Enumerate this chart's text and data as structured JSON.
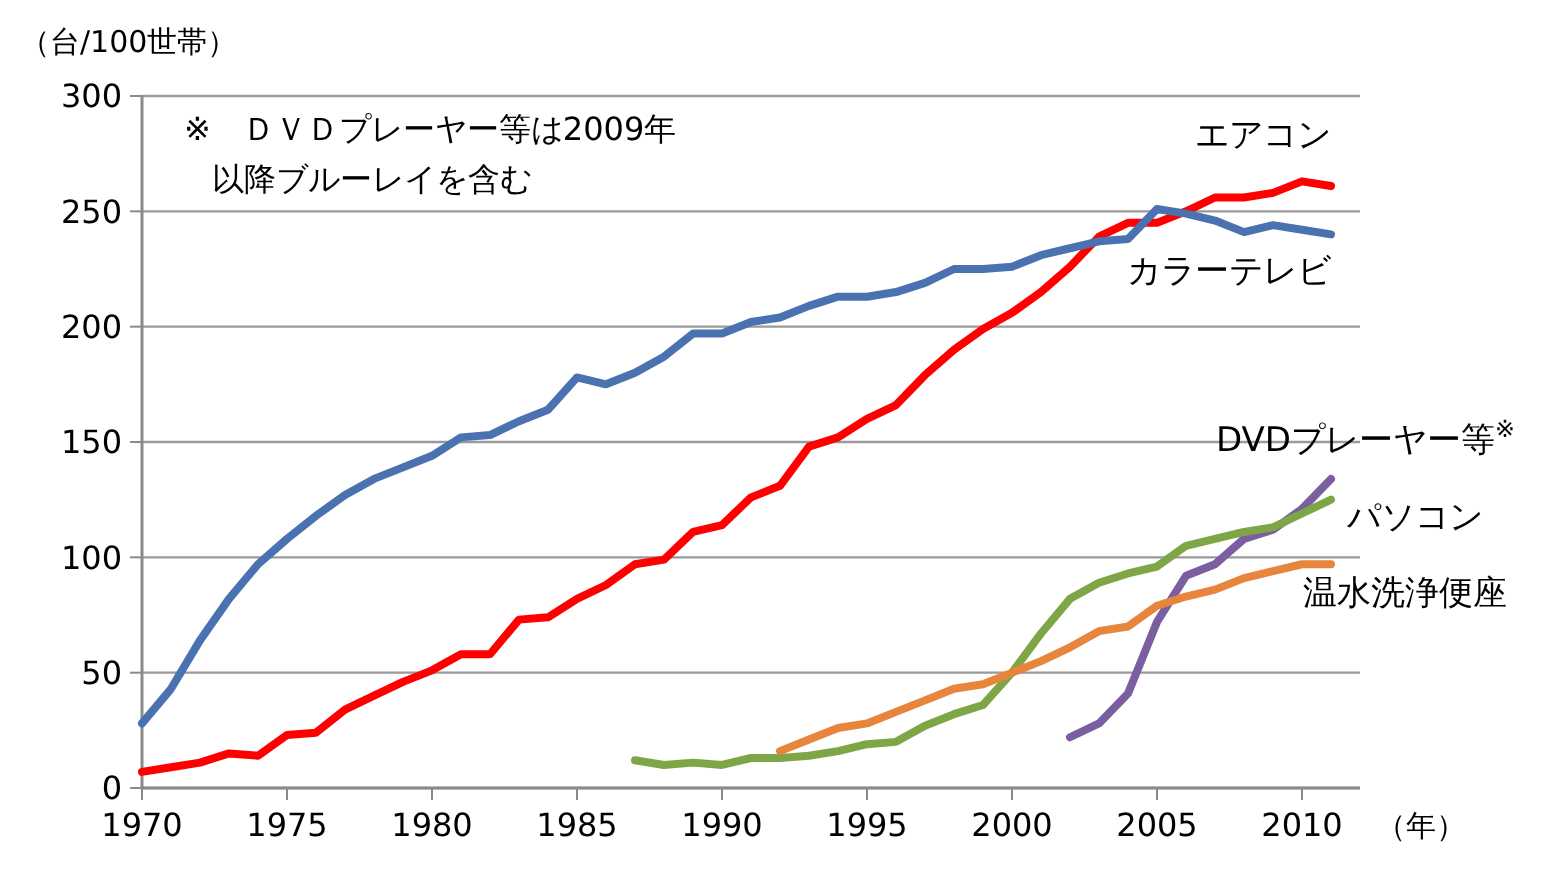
{
  "chart_data": {
    "type": "line",
    "ylabel": "（台/100世帯）",
    "xlabel": "（年）",
    "annotations": [
      "※　ＤＶＤプレーヤー等は2009年",
      "以降ブルーレイを含む"
    ],
    "xlim": [
      1970,
      2012
    ],
    "xticks": [
      1970,
      1975,
      1980,
      1985,
      1990,
      1995,
      2000,
      2005,
      2010
    ],
    "ylim": [
      0,
      300
    ],
    "yticks": [
      0,
      50,
      100,
      150,
      200,
      250,
      300
    ],
    "grid": "y",
    "legend": false,
    "marker": "none",
    "line_style": "solid",
    "series": [
      {
        "name": "エアコン",
        "color": "#ff0000",
        "x": [
          1970,
          1971,
          1972,
          1973,
          1974,
          1975,
          1976,
          1977,
          1978,
          1979,
          1980,
          1981,
          1982,
          1983,
          1984,
          1985,
          1986,
          1987,
          1988,
          1989,
          1990,
          1991,
          1992,
          1993,
          1994,
          1995,
          1996,
          1997,
          1998,
          1999,
          2000,
          2001,
          2002,
          2003,
          2004,
          2005,
          2006,
          2007,
          2008,
          2009,
          2010,
          2011
        ],
        "values": [
          7,
          9,
          11,
          15,
          14,
          23,
          24,
          34,
          40,
          46,
          51,
          58,
          58,
          73,
          74,
          82,
          88,
          97,
          99,
          111,
          114,
          126,
          131,
          148,
          152,
          160,
          166,
          179,
          190,
          199,
          206,
          215,
          226,
          239,
          245,
          245,
          250,
          256,
          256,
          258,
          263,
          261
        ]
      },
      {
        "name": "カラーテレビ",
        "color": "#4a72b0",
        "x": [
          1970,
          1971,
          1972,
          1973,
          1974,
          1975,
          1976,
          1977,
          1978,
          1979,
          1980,
          1981,
          1982,
          1983,
          1984,
          1985,
          1986,
          1987,
          1988,
          1989,
          1990,
          1991,
          1992,
          1993,
          1994,
          1995,
          1996,
          1997,
          1998,
          1999,
          2000,
          2001,
          2002,
          2003,
          2004,
          2005,
          2006,
          2007,
          2008,
          2009,
          2010,
          2011
        ],
        "values": [
          28,
          43,
          64,
          82,
          97,
          108,
          118,
          127,
          134,
          139,
          144,
          152,
          153,
          159,
          164,
          178,
          175,
          180,
          187,
          197,
          197,
          202,
          204,
          209,
          213,
          213,
          215,
          219,
          225,
          225,
          226,
          231,
          234,
          237,
          238,
          251,
          249,
          246,
          241,
          244,
          242,
          240
        ]
      },
      {
        "name": "DVDプレーヤー等$^{※}$",
        "color": "#7a5ea0",
        "x": [
          2002,
          2003,
          2004,
          2005,
          2006,
          2007,
          2008,
          2009,
          2010,
          2011
        ],
        "values": [
          22,
          28,
          41,
          72,
          92,
          97,
          108,
          112,
          121,
          134
        ]
      },
      {
        "name": "パソコン",
        "color": "#7fa646",
        "x": [
          1987,
          1988,
          1989,
          1990,
          1991,
          1992,
          1993,
          1994,
          1995,
          1996,
          1997,
          1998,
          1999,
          2000,
          2001,
          2002,
          2003,
          2004,
          2005,
          2006,
          2007,
          2008,
          2009,
          2010,
          2011
        ],
        "values": [
          12,
          10,
          11,
          10,
          13,
          13,
          14,
          16,
          19,
          20,
          27,
          32,
          36,
          50,
          67,
          82,
          89,
          93,
          96,
          105,
          108,
          111,
          113,
          119,
          125
        ]
      },
      {
        "name": "温水洗浄便座",
        "color": "#e8853c",
        "x": [
          1992,
          1993,
          1994,
          1995,
          1996,
          1997,
          1998,
          1999,
          2000,
          2001,
          2002,
          2003,
          2004,
          2005,
          2006,
          2007,
          2008,
          2009,
          2010,
          2011
        ],
        "values": [
          16,
          21,
          26,
          28,
          33,
          38,
          43,
          45,
          50,
          55,
          61,
          68,
          70,
          79,
          83,
          86,
          91,
          94,
          97,
          97
        ]
      }
    ]
  }
}
